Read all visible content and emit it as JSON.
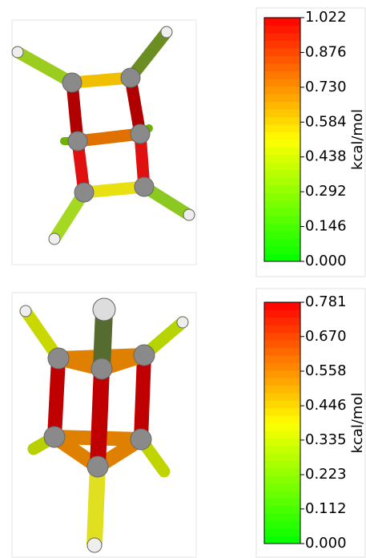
{
  "chart_data": [
    {
      "type": "colorbar",
      "axis_label": "kcal/mol",
      "colors": [
        "#00ff00",
        "#ffff00",
        "#ff0000"
      ],
      "ylim": [
        0,
        1.022
      ],
      "yticks": [
        {
          "value": 0,
          "label": "0.000"
        },
        0.146,
        0.292,
        0.438,
        0.584,
        {
          "value": 0.73,
          "label": "0.730"
        },
        0.876,
        1.022
      ]
    },
    {
      "type": "colorbar",
      "axis_label": "kcal/mol",
      "colors": [
        "#00ff00",
        "#ffff00",
        "#ff0000"
      ],
      "ylim": [
        0,
        0.781
      ],
      "yticks": [
        {
          "value": 0,
          "label": "0.000"
        },
        0.112,
        0.223,
        0.335,
        0.446,
        0.558,
        {
          "value": 0.67,
          "label": "0.670"
        },
        0.781
      ]
    }
  ]
}
